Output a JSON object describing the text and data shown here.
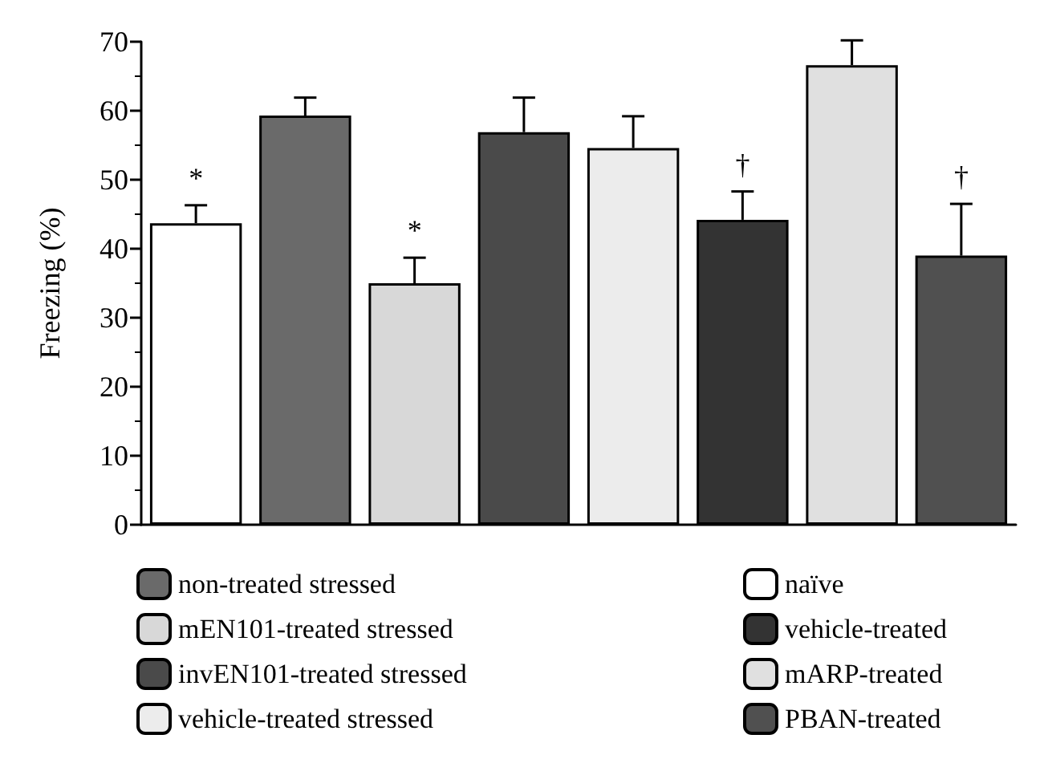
{
  "chart_data": {
    "type": "bar",
    "ylabel": "Freezing (%)",
    "categories": [
      null,
      null,
      null,
      null,
      null,
      null,
      null,
      null
    ],
    "ylim": [
      0,
      70
    ],
    "yticks": [
      0,
      10,
      20,
      30,
      40,
      50,
      60,
      70
    ],
    "grid": false,
    "legend": "bottom",
    "series": [
      {
        "name": "naïve",
        "color": "#ffffff",
        "values": [
          43.7,
          null,
          null,
          null,
          null,
          null,
          null,
          null
        ],
        "errors": [
          2.6,
          null,
          null,
          null,
          null,
          null,
          null,
          null
        ],
        "value_labels": [
          "*",
          null,
          null,
          null,
          null,
          null,
          null,
          null
        ]
      },
      {
        "name": "non-treated stressed",
        "color": "#6a6a6a",
        "values": [
          null,
          59.3,
          null,
          null,
          null,
          null,
          null,
          null
        ],
        "errors": [
          null,
          2.6,
          null,
          null,
          null,
          null,
          null,
          null
        ]
      },
      {
        "name": "mEN101-treated stressed",
        "color": "#d8d8d8",
        "values": [
          null,
          null,
          35,
          null,
          null,
          null,
          null,
          null
        ],
        "errors": [
          null,
          null,
          3.7,
          null,
          null,
          null,
          null,
          null
        ],
        "value_labels": [
          null,
          null,
          "*",
          null,
          null,
          null,
          null,
          null
        ]
      },
      {
        "name": "invEN101-treated stressed",
        "color": "#4a4a4a",
        "values": [
          null,
          null,
          null,
          56.9,
          null,
          null,
          null,
          null
        ],
        "errors": [
          null,
          null,
          null,
          5,
          null,
          null,
          null,
          null
        ]
      },
      {
        "name": "vehicle-treated stressed",
        "color": "#ececec",
        "values": [
          null,
          null,
          null,
          null,
          54.6,
          null,
          null,
          null
        ],
        "errors": [
          null,
          null,
          null,
          null,
          4.6,
          null,
          null,
          null
        ]
      },
      {
        "name": "vehicle-treated",
        "color": "#333333",
        "values": [
          null,
          null,
          null,
          null,
          null,
          44.2,
          null,
          null
        ],
        "errors": [
          null,
          null,
          null,
          null,
          null,
          4.1,
          null,
          null
        ],
        "value_labels": [
          null,
          null,
          null,
          null,
          null,
          "†",
          null,
          null
        ]
      },
      {
        "name": "mARP-treated",
        "color": "#e0e0e0",
        "values": [
          null,
          null,
          null,
          null,
          null,
          null,
          66.6,
          null
        ],
        "errors": [
          null,
          null,
          null,
          null,
          null,
          null,
          3.6,
          null
        ]
      },
      {
        "name": "PBAN-treated",
        "color": "#505050",
        "values": [
          null,
          null,
          null,
          null,
          null,
          null,
          null,
          39
        ],
        "errors": [
          null,
          null,
          null,
          null,
          null,
          null,
          null,
          7.5
        ],
        "value_labels": [
          null,
          null,
          null,
          null,
          null,
          null,
          null,
          "†"
        ]
      }
    ]
  }
}
